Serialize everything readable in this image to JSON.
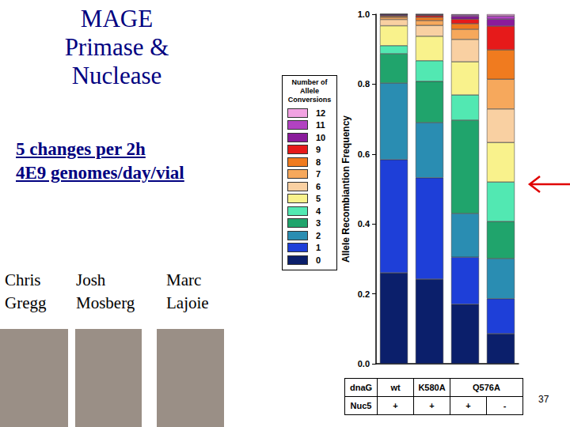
{
  "slide": {
    "title": [
      "MAGE",
      "Primase &",
      "Nuclease"
    ],
    "text": [
      "5 changes per 2h",
      "4E9 genomes/day/vial"
    ],
    "names": [
      [
        "Chris",
        "Gregg"
      ],
      [
        "Josh",
        "Mosberg"
      ],
      [
        "Marc",
        "Lajoie"
      ]
    ],
    "page": "37"
  },
  "chart_data": {
    "type": "bar",
    "stacked": true,
    "legend": "left",
    "legend_title": "Number of Allele Conversions",
    "y_label": "Allele Recombiantion Frequency",
    "categories": [
      null,
      null,
      null,
      null
    ],
    "ylim": [
      0,
      1
    ],
    "yticks": [
      {
        "value": 0,
        "label": "0.0"
      },
      {
        "value": 0.2,
        "label": "0.2"
      },
      {
        "value": 0.4,
        "label": "0.4"
      },
      {
        "value": 0.6,
        "label": "0.6"
      },
      {
        "value": 0.8,
        "label": "0.8"
      },
      {
        "value": 1,
        "label": "1.0"
      }
    ],
    "series": [
      {
        "name": "0",
        "color": "#0b1f6b",
        "values": [
          0.26,
          0.242,
          0.17,
          0.086
        ]
      },
      {
        "name": "1",
        "color": "#1e3fd8",
        "values": [
          0.324,
          0.29,
          0.135,
          0.1
        ]
      },
      {
        "name": "2",
        "color": "#2a8db2",
        "values": [
          0.219,
          0.158,
          0.125,
          0.115
        ]
      },
      {
        "name": "3",
        "color": "#20a46c",
        "values": [
          0.084,
          0.118,
          0.267,
          0.106
        ]
      },
      {
        "name": "4",
        "color": "#52e8b2",
        "values": [
          0.023,
          0.059,
          0.072,
          0.113
        ]
      },
      {
        "name": "5",
        "color": "#f9f28c",
        "values": [
          0.057,
          0.07,
          0.095,
          0.113
        ]
      },
      {
        "name": "6",
        "color": "#f9d0a2",
        "values": [
          0.018,
          0.031,
          0.064,
          0.096
        ]
      },
      {
        "name": "7",
        "color": "#f6a85c",
        "values": [
          0.006,
          0.014,
          0.029,
          0.085
        ]
      },
      {
        "name": "8",
        "color": "#f07b1f",
        "values": [
          0.004,
          0.009,
          0.016,
          0.084
        ]
      },
      {
        "name": "9",
        "color": "#e61a1a",
        "values": [
          0.001,
          0.005,
          0.013,
          0.068
        ]
      },
      {
        "name": "10",
        "color": "#8a1b9b",
        "values": [
          0.004,
          0.002,
          0.008,
          0.02
        ]
      },
      {
        "name": "11",
        "color": "#b242c2",
        "values": [
          0,
          0.002,
          0.004,
          0.009
        ]
      },
      {
        "name": "12",
        "color": "#f2a2e2",
        "values": [
          0,
          0,
          0.002,
          0.005
        ]
      }
    ],
    "table": {
      "rows": [
        {
          "label": "dnaG",
          "cells": [
            {
              "text": "wt",
              "span": 1
            },
            {
              "text": "K580A",
              "span": 1
            },
            {
              "text": "Q576A",
              "span": 2
            }
          ]
        },
        {
          "label": "Nuc5",
          "cells": [
            {
              "text": "+",
              "span": 1
            },
            {
              "text": "+",
              "span": 1
            },
            {
              "text": "+",
              "span": 1
            },
            {
              "text": "-",
              "span": 1
            }
          ]
        }
      ]
    }
  }
}
